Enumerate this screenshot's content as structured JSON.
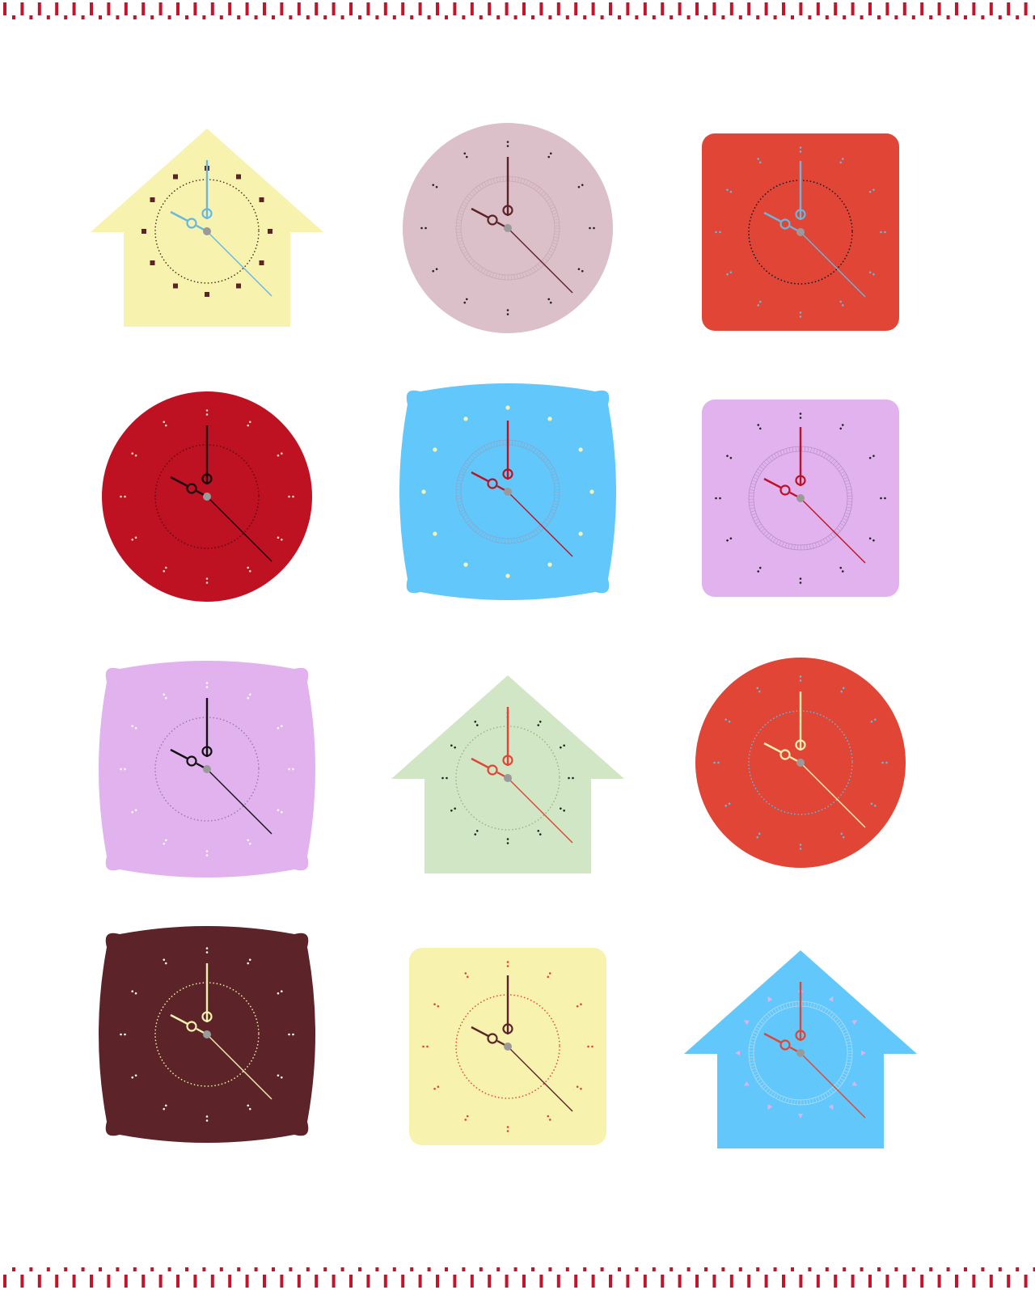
{
  "border": {
    "color": "#c0152b"
  },
  "hands": {
    "pivot_color": "#9a9a9a"
  },
  "clocks": [
    {
      "shape": "house",
      "face": "#f7f2ad",
      "hand": "#67b8e0",
      "marker": "#5c2328",
      "marker_style": "square",
      "ring": "#4a3020",
      "ring_style": "dotted"
    },
    {
      "shape": "circle",
      "face": "#dbbfc9",
      "hand": "#5c2328",
      "marker": "#222222",
      "marker_style": "colon",
      "ring": "#c9a8b4",
      "ring_style": "railway"
    },
    {
      "shape": "rounded-square",
      "face": "#e04535",
      "hand": "#67b8e0",
      "marker": "#67b8e0",
      "marker_style": "colon",
      "ring": "#111111",
      "ring_style": "dotted"
    },
    {
      "shape": "circle",
      "face": "#be1122",
      "hand": "#1a0508",
      "marker": "#f3dcc9",
      "marker_style": "colon",
      "ring": "#5a0712",
      "ring_style": "dotted"
    },
    {
      "shape": "squircle",
      "face": "#62c8fb",
      "hand": "#be1122",
      "marker": "#f4f2b4",
      "marker_style": "dot",
      "ring": "#88a6c9",
      "ring_style": "railway"
    },
    {
      "shape": "rounded-square",
      "face": "#e2b2ef",
      "hand": "#be1122",
      "marker": "#222222",
      "marker_style": "colon",
      "ring": "#b98ec6",
      "ring_style": "railway"
    },
    {
      "shape": "squircle",
      "face": "#e2b2ef",
      "hand": "#111111",
      "marker": "#ffffff",
      "marker_style": "colon",
      "ring": "#9d77a7",
      "ring_style": "dotted"
    },
    {
      "shape": "house",
      "face": "#d0e6c5",
      "hand": "#e04535",
      "marker": "#222222",
      "marker_style": "colon",
      "ring": "#98b58c",
      "ring_style": "dotted"
    },
    {
      "shape": "circle",
      "face": "#e04535",
      "hand": "#f7f2ad",
      "marker": "#67b8e0",
      "marker_style": "colon",
      "ring": "#67b8e0",
      "ring_style": "dotted"
    },
    {
      "shape": "squircle",
      "face": "#5c2328",
      "hand": "#f7f2ad",
      "marker": "#ffffff",
      "marker_style": "colon",
      "ring": "#f7f2ad",
      "ring_style": "dotted"
    },
    {
      "shape": "rounded-square",
      "face": "#f7f2ad",
      "hand": "#5c2328",
      "marker": "#e04535",
      "marker_style": "colon",
      "ring": "#e04535",
      "ring_style": "dotted"
    },
    {
      "shape": "house",
      "face": "#62c8fb",
      "hand": "#e04535",
      "marker": "#e2b2ef",
      "marker_style": "triangle",
      "ring": "#b4dcf3",
      "ring_style": "railway"
    }
  ]
}
